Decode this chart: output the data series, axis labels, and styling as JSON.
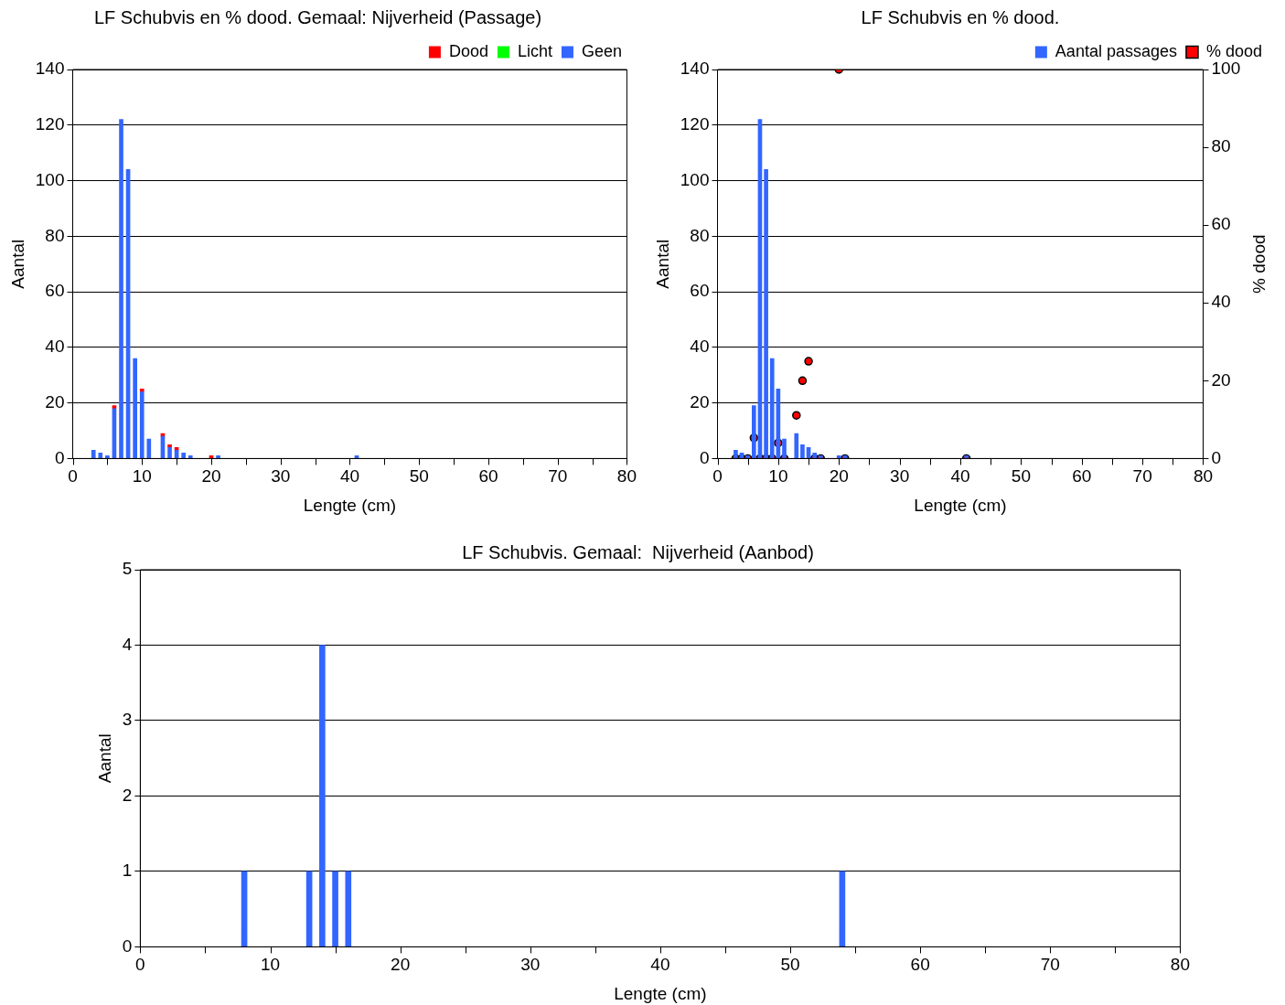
{
  "chart_data": [
    {
      "type": "bar",
      "title": "LF Schubvis en % dood. Gemaal: Nijverheid (Passage)",
      "xlabel": "Lengte (cm)",
      "ylabel": "Aantal",
      "stacked": true,
      "x": [
        3,
        4,
        5,
        6,
        7,
        8,
        9,
        10,
        11,
        13,
        14,
        15,
        16,
        17,
        20,
        21,
        41
      ],
      "series": [
        {
          "name": "Geen",
          "color": "#3366ff",
          "values": [
            3,
            2,
            1,
            18,
            122,
            104,
            36,
            24,
            7,
            8,
            4,
            3,
            2,
            1,
            0,
            1,
            1
          ]
        },
        {
          "name": "Licht",
          "color": "#00ff00",
          "values": [
            0,
            0,
            0,
            0,
            0,
            0,
            0,
            0,
            0,
            0,
            0,
            0,
            0,
            0,
            0,
            0,
            0
          ]
        },
        {
          "name": "Dood",
          "color": "#ff0000",
          "values": [
            0,
            0,
            0,
            1,
            0,
            0,
            0,
            1,
            0,
            1,
            1,
            1,
            0,
            0,
            1,
            0,
            0
          ]
        }
      ],
      "xlim": [
        0,
        80
      ],
      "xticks": [
        0,
        {
          "value": 5,
          "label": null
        },
        10,
        {
          "value": 15,
          "label": null
        },
        20,
        {
          "value": 25,
          "label": null
        },
        30,
        {
          "value": 35,
          "label": null
        },
        40,
        {
          "value": 45,
          "label": null
        },
        50,
        {
          "value": 55,
          "label": null
        },
        60,
        {
          "value": 65,
          "label": null
        },
        70,
        {
          "value": 75,
          "label": null
        },
        80
      ],
      "ylim": [
        0,
        140
      ],
      "yticks": [
        0,
        20,
        40,
        60,
        80,
        100,
        120,
        140
      ],
      "grid": "y",
      "legend": "top right"
    },
    {
      "type": "bar",
      "title": "LF Schubvis en % dood.",
      "xlabel": "Lengte (cm)",
      "ylabel": "Aantal",
      "y2label": "% dood",
      "x": [
        3,
        4,
        5,
        6,
        7,
        8,
        9,
        10,
        11,
        13,
        14,
        15,
        16,
        17,
        20,
        21,
        41
      ],
      "series": [
        {
          "name": "Aantal passages",
          "color": "#3366ff",
          "values": [
            3,
            2,
            1,
            19,
            122,
            104,
            36,
            25,
            7,
            9,
            5,
            4,
            2,
            1,
            1,
            1,
            1
          ]
        },
        {
          "name": "% dood",
          "type": "scatter",
          "axis": "y2",
          "color": "#ff0000",
          "x": [
            3,
            4,
            5,
            6,
            7,
            8,
            9,
            10,
            11,
            13,
            14,
            15,
            16,
            17,
            20,
            21,
            41
          ],
          "values": [
            0,
            0,
            0,
            5.3,
            0,
            0,
            0,
            4,
            0,
            11.1,
            20,
            25,
            0,
            0,
            100,
            0,
            0
          ]
        }
      ],
      "xlim": [
        0,
        80
      ],
      "xticks": [
        0,
        {
          "value": 5,
          "label": null
        },
        10,
        {
          "value": 15,
          "label": null
        },
        20,
        {
          "value": 25,
          "label": null
        },
        30,
        {
          "value": 35,
          "label": null
        },
        40,
        {
          "value": 45,
          "label": null
        },
        50,
        {
          "value": 55,
          "label": null
        },
        60,
        {
          "value": 65,
          "label": null
        },
        70,
        {
          "value": 75,
          "label": null
        },
        80
      ],
      "ylim": [
        0,
        140
      ],
      "yticks": [
        0,
        20,
        40,
        60,
        80,
        100,
        120,
        140
      ],
      "y2lim": [
        0,
        100
      ],
      "y2ticks": [
        0,
        20,
        40,
        60,
        80,
        100
      ],
      "grid": "y",
      "legend": "top right",
      "marker": "circle"
    },
    {
      "type": "bar",
      "title": "LF Schubvis. Gemaal:  Nijverheid (Aanbod)",
      "xlabel": "Lengte (cm)",
      "ylabel": "Aantal",
      "x": [
        8,
        13,
        14,
        15,
        16,
        54
      ],
      "series": [
        {
          "color": "#3366ff",
          "values": [
            1,
            1,
            4,
            1,
            1,
            1
          ]
        }
      ],
      "xlim": [
        0,
        80
      ],
      "xticks": [
        0,
        {
          "value": 5,
          "label": null
        },
        10,
        {
          "value": 15,
          "label": null
        },
        20,
        {
          "value": 25,
          "label": null
        },
        30,
        {
          "value": 35,
          "label": null
        },
        40,
        {
          "value": 45,
          "label": null
        },
        50,
        {
          "value": 55,
          "label": null
        },
        60,
        {
          "value": 65,
          "label": null
        },
        70,
        {
          "value": 75,
          "label": null
        },
        80
      ],
      "ylim": [
        0,
        5
      ],
      "yticks": [
        0,
        1,
        2,
        3,
        4,
        5
      ],
      "grid": "y"
    }
  ]
}
